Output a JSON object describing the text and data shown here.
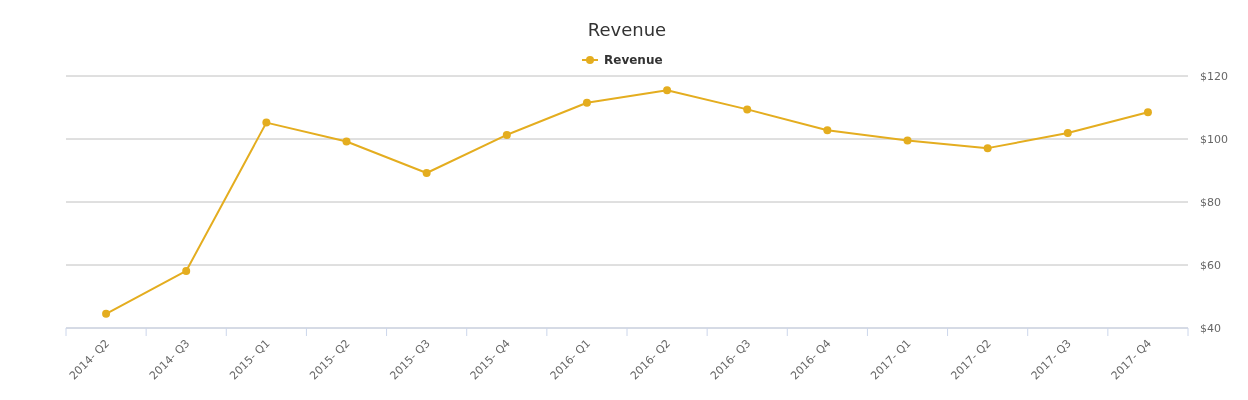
{
  "chart_data": {
    "type": "line",
    "title": "Revenue",
    "categories": [
      "2014- Q2",
      "2014- Q3",
      "2015- Q1",
      "2015- Q2",
      "2015- Q3",
      "2015- Q4",
      "2016- Q1",
      "2016- Q2",
      "2016- Q3",
      "2016- Q4",
      "2017- Q1",
      "2017- Q2",
      "2017- Q3",
      "2017- Q4"
    ],
    "series": [
      {
        "name": "Revenue",
        "color": "#e4ad1f",
        "values": [
          44.5,
          58.1,
          105.2,
          99.2,
          89.2,
          101.3,
          111.5,
          115.5,
          109.4,
          102.8,
          99.5,
          97.1,
          101.9,
          108.5
        ]
      }
    ],
    "ylim": [
      40,
      120
    ],
    "yticks": [
      {
        "value": 40,
        "label": "$40"
      },
      {
        "value": 60,
        "label": "$60"
      },
      {
        "value": 80,
        "label": "$80"
      },
      {
        "value": 100,
        "label": "$100"
      },
      {
        "value": 120,
        "label": "$120"
      }
    ],
    "grid": "y",
    "legend": "top",
    "marker": "circle",
    "line_style": "solid"
  }
}
